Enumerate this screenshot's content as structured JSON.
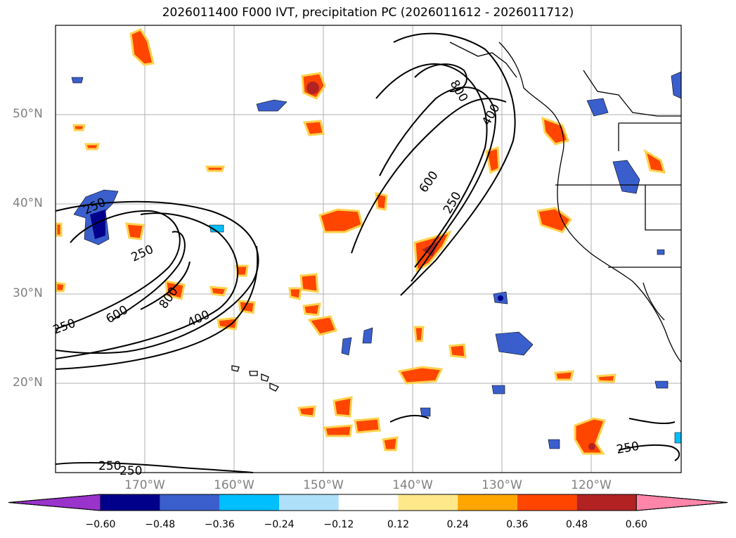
{
  "title": "2026011400 F000 IVT, precipitation PC (2026011612 - 2026011712)",
  "lat_labels": [
    "50°N",
    "40°N",
    "30°N",
    "20°N"
  ],
  "lon_labels": [
    "170°W",
    "160°W",
    "150°W",
    "140°W",
    "130°W",
    "120°W"
  ],
  "contour_labels": [
    "250",
    "250",
    "250",
    "600",
    "800",
    "400",
    "250",
    "250",
    "600",
    "800",
    "400",
    "250",
    "250"
  ],
  "colorbar": {
    "colors": [
      "#9933cc",
      "#00008b",
      "#3a5fcd",
      "#00bfff",
      "#afe0fa",
      "#ffffff",
      "#ffe88a",
      "#ffa500",
      "#ff4500",
      "#b22222",
      "#ff85aa"
    ],
    "tick_labels": [
      "−0.60",
      "−0.48",
      "−0.36",
      "−0.24",
      "−0.12",
      "0.12",
      "0.24",
      "0.36",
      "0.48",
      "0.60"
    ]
  }
}
